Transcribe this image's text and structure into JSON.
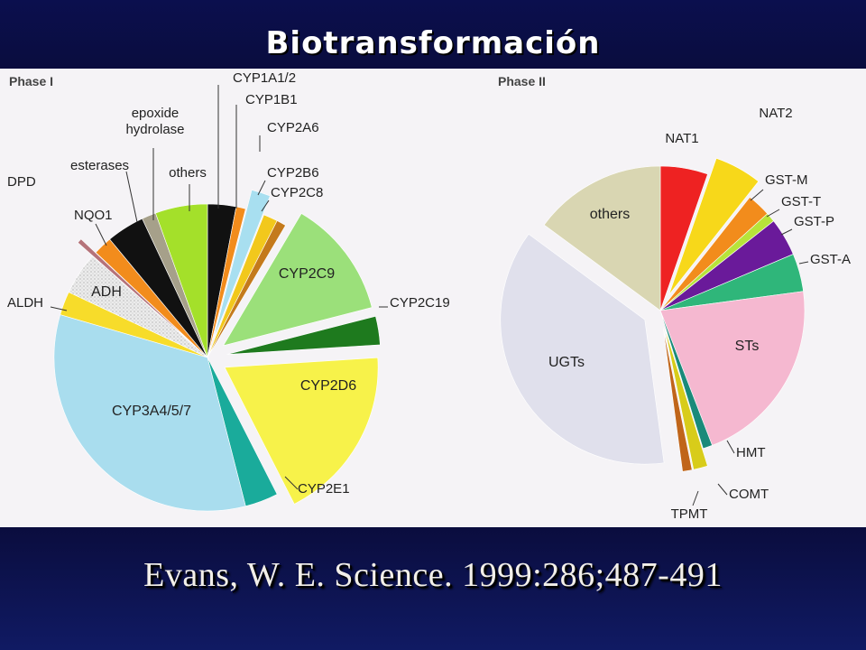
{
  "slide": {
    "title": "Biotransformación",
    "citation": "Evans, W. E.  Science. 1999:286;487-491"
  },
  "chart_data": [
    {
      "type": "pie",
      "title": "Phase I",
      "slices": [
        {
          "label": "CYP1A1/2",
          "value": 3.0,
          "color": "#111111",
          "exploded": false
        },
        {
          "label": "CYP1B1",
          "value": 1.0,
          "color": "#f28c1c",
          "exploded": false
        },
        {
          "label": "CYP2A6",
          "value": 2.0,
          "color": "#a8dff0",
          "exploded": true
        },
        {
          "label": "CYP2B6",
          "value": 1.5,
          "color": "#f2c81c",
          "exploded": false
        },
        {
          "label": "CYP2C8",
          "value": 1.0,
          "color": "#c47a1c",
          "exploded": false
        },
        {
          "label": "CYP2C9",
          "value": 12.5,
          "color": "#9be07a",
          "exploded": true
        },
        {
          "label": "CYP2C19",
          "value": 3.0,
          "color": "#1e7a1e",
          "exploded": true
        },
        {
          "label": "CYP2D6",
          "value": 18.5,
          "color": "#f7f24a",
          "exploded": true
        },
        {
          "label": "CYP2E1",
          "value": 3.5,
          "color": "#1aab9b",
          "exploded": false
        },
        {
          "label": "CYP3A4/5/7",
          "value": 33.5,
          "color": "#a9ddee",
          "exploded": false
        },
        {
          "label": "ALDH",
          "value": 2.5,
          "color": "#f7dc2a",
          "exploded": false
        },
        {
          "label": "ADH",
          "value": 4.5,
          "color": "#e3e3e3",
          "exploded": false
        },
        {
          "label": "DPD",
          "value": 0.5,
          "color": "#b5737a",
          "exploded": true
        },
        {
          "label": "NQO1",
          "value": 2.0,
          "color": "#f28c1c",
          "exploded": false
        },
        {
          "label": "esterases",
          "value": 4.0,
          "color": "#111111",
          "exploded": false
        },
        {
          "label": "epoxide hydrolase",
          "value": 1.5,
          "color": "#a6a08a",
          "exploded": false
        },
        {
          "label": "others",
          "value": 5.5,
          "color": "#a4e02a",
          "exploded": false
        }
      ]
    },
    {
      "type": "pie",
      "title": "Phase II",
      "slices": [
        {
          "label": "NAT1",
          "value": 5.0,
          "color": "#ee2222",
          "exploded": false
        },
        {
          "label": "NAT2",
          "value": 5.0,
          "color": "#f7d81a",
          "exploded": true
        },
        {
          "label": "GST-M",
          "value": 2.5,
          "color": "#f28c1c",
          "exploded": false
        },
        {
          "label": "GST-T",
          "value": 1.0,
          "color": "#b7e43a",
          "exploded": false
        },
        {
          "label": "GST-P",
          "value": 4.0,
          "color": "#6a1a9a",
          "exploded": false
        },
        {
          "label": "GST-A",
          "value": 4.0,
          "color": "#2fb67a",
          "exploded": false
        },
        {
          "label": "STs",
          "value": 20.0,
          "color": "#f5b8d0",
          "exploded": false
        },
        {
          "label": "HMT",
          "value": 1.0,
          "color": "#1a8a7a",
          "exploded": false
        },
        {
          "label": "COMT",
          "value": 1.5,
          "color": "#d8cc1a",
          "exploded": true
        },
        {
          "label": "TPMT",
          "value": 1.0,
          "color": "#c0651a",
          "exploded": true
        },
        {
          "label": "UGTs",
          "value": 35.0,
          "color": "#e0e0ec",
          "exploded": true
        },
        {
          "label": "others",
          "value": 14.0,
          "color": "#d9d6b2",
          "exploded": false
        }
      ]
    }
  ]
}
